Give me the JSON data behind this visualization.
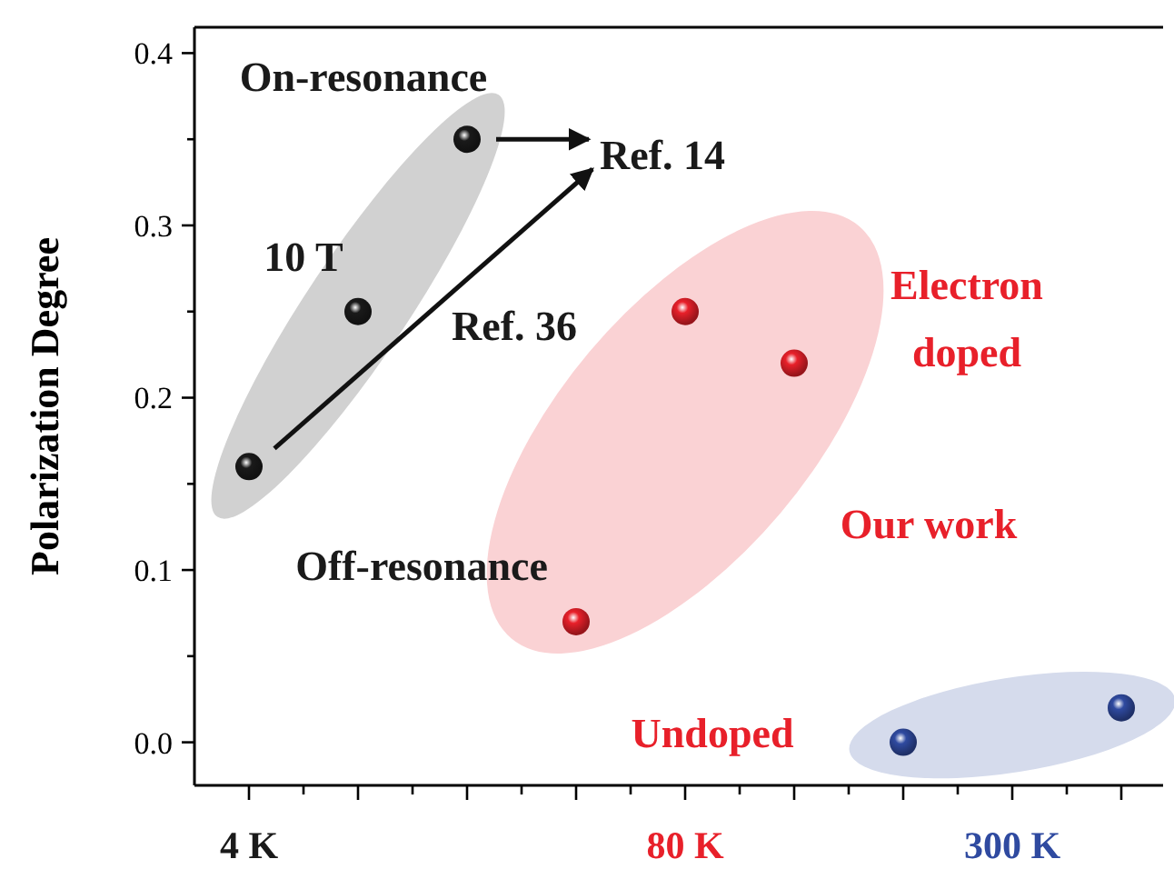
{
  "chart_data": {
    "type": "scatter",
    "ylabel": "Polarization Degree",
    "marker": "circle",
    "grid": false,
    "categories": [
      "4 K",
      null,
      null,
      null,
      "80 K",
      null,
      null,
      "300 K",
      null
    ],
    "ylim": [
      -0.025,
      0.415
    ],
    "yticks": [
      {
        "value": 0,
        "label": "0.0"
      },
      0.1,
      0.2,
      0.3,
      0.4,
      {
        "value": 0.05,
        "label": null
      },
      {
        "value": 0.15,
        "label": null
      },
      {
        "value": 0.25,
        "label": null
      },
      {
        "value": 0.35,
        "label": null
      }
    ],
    "series": [
      {
        "color": "#1a1a1a",
        "values": [
          0.16,
          0.25,
          0.35,
          null,
          null,
          null,
          null,
          null,
          null
        ]
      },
      {
        "color": "#e8202a",
        "values": [
          null,
          null,
          null,
          0.07,
          0.25,
          0.22,
          null,
          null,
          null
        ]
      },
      {
        "color": "#2f4aa0",
        "values": [
          null,
          null,
          null,
          null,
          null,
          null,
          0.0,
          null,
          0.02
        ]
      }
    ],
    "annotations": [
      "On-resonance",
      "Ref. 14",
      "10 T",
      "Ref. 36",
      "Off-resonance",
      "Electron doped",
      "Our work",
      "Undoped"
    ]
  }
}
